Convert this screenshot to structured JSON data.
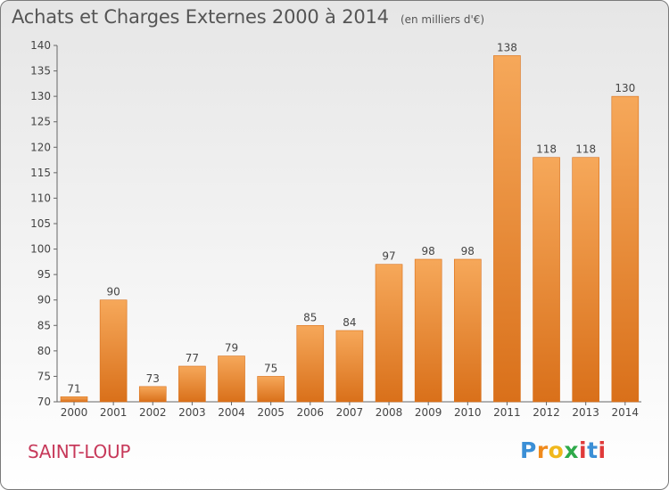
{
  "title": "Achats et Charges Externes 2000 à 2014",
  "unit_note": "(en milliers d'€)",
  "commune": "SAINT-LOUP",
  "logo": {
    "letters": [
      "P",
      "r",
      "o",
      "x",
      "i",
      "t",
      "i"
    ],
    "colors": [
      "#3b8fd6",
      "#f08a1c",
      "#f0b81c",
      "#2eaa4a",
      "#e03a3a",
      "#3b8fd6",
      "#e03a3a"
    ]
  },
  "colors": {
    "bar": "#f08a28",
    "bar_light": "#f6a85a",
    "bar_dark": "#d9701a"
  },
  "chart_data": {
    "type": "bar",
    "categories": [
      "2000",
      "2001",
      "2002",
      "2003",
      "2004",
      "2005",
      "2006",
      "2007",
      "2008",
      "2009",
      "2010",
      "2011",
      "2012",
      "2013",
      "2014"
    ],
    "values": [
      71,
      90,
      73,
      77,
      79,
      75,
      85,
      84,
      97,
      98,
      98,
      138,
      118,
      118,
      130
    ],
    "data_labels": [
      "71",
      "90",
      "73",
      "77",
      "79",
      "75",
      "85",
      "84",
      "97",
      "98",
      "98",
      "138",
      "118",
      "118",
      "130"
    ],
    "title": "Achats et Charges Externes 2000 à 2014",
    "subtitle": "(en milliers d'€)",
    "xlabel": "",
    "ylabel": "",
    "ylim": [
      70,
      140
    ],
    "yticks": [
      70,
      75,
      80,
      85,
      90,
      95,
      100,
      105,
      110,
      115,
      120,
      125,
      130,
      135,
      140
    ],
    "grid": false,
    "legend": "none"
  }
}
